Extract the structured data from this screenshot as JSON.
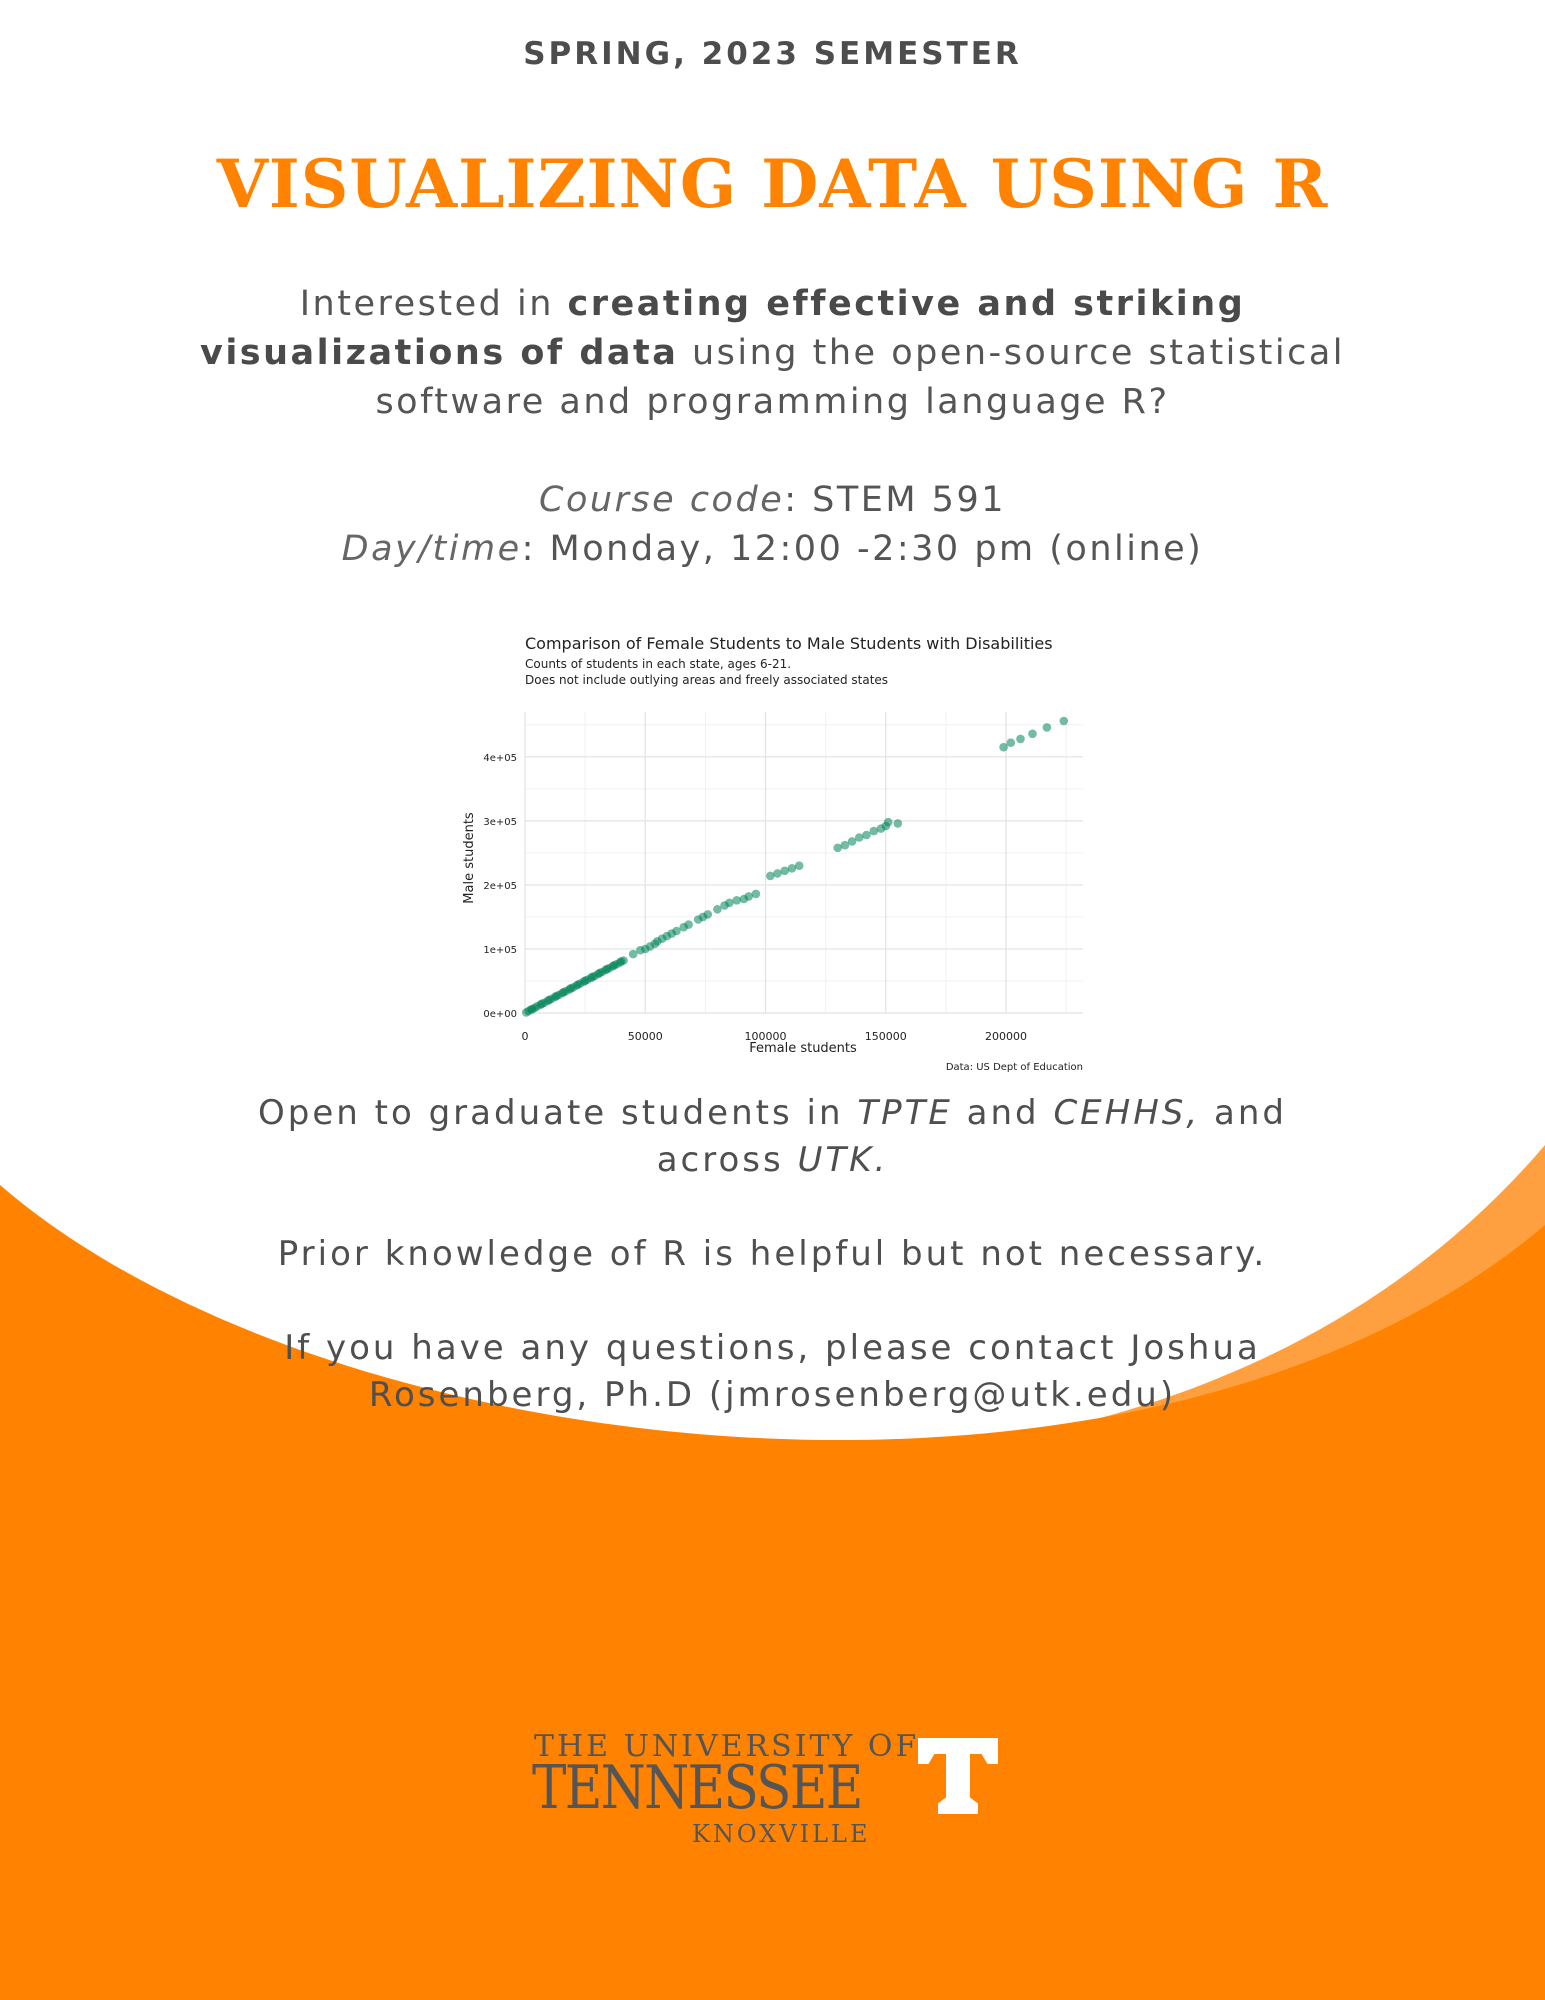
{
  "header": {
    "semester": "SPRING, 2023 SEMESTER",
    "title": "VISUALIZING DATA USING R"
  },
  "intro": {
    "part1": "Interested in ",
    "bold1": "creating effective and striking visualizations of data",
    "part2": " using the open-source statistical software and programming language R?"
  },
  "course": {
    "code_label": "Course code",
    "code_value": ": STEM 591",
    "time_label": "Day/time",
    "time_value": ": Monday, 12:00 -2:30 pm (online)"
  },
  "chart_data": {
    "type": "scatter",
    "title": "Comparison of Female Students to Male Students with Disabilities",
    "subtitle_line1": "Counts of students in each state, ages 6-21.",
    "subtitle_line2": "Does not include outlying areas and freely associated states",
    "xlabel": "Female students",
    "ylabel": "Male students",
    "caption": "Data: US Dept of Education",
    "xlim": [
      0,
      232000
    ],
    "ylim": [
      0,
      470000
    ],
    "x_ticks": [
      0,
      50000,
      100000,
      150000,
      200000
    ],
    "x_tick_labels": [
      "0",
      "50000",
      "100000",
      "150000",
      "200000"
    ],
    "y_ticks": [
      0,
      100000,
      200000,
      300000,
      400000
    ],
    "y_tick_labels": [
      "0e+00",
      "1e+05",
      "2e+05",
      "3e+05",
      "4e+05"
    ],
    "grid": true,
    "point_color": "#00845a",
    "points": [
      [
        500,
        1000
      ],
      [
        1500,
        3000
      ],
      [
        2500,
        5500
      ],
      [
        4000,
        8000
      ],
      [
        5000,
        10500
      ],
      [
        6500,
        13000
      ],
      [
        8000,
        16000
      ],
      [
        9500,
        19000
      ],
      [
        11000,
        22000
      ],
      [
        12500,
        25000
      ],
      [
        14000,
        28000
      ],
      [
        15500,
        31000
      ],
      [
        17000,
        34000
      ],
      [
        18500,
        37000
      ],
      [
        20000,
        40000
      ],
      [
        21500,
        43000
      ],
      [
        23000,
        46000
      ],
      [
        24500,
        49000
      ],
      [
        26000,
        52000
      ],
      [
        27500,
        55000
      ],
      [
        29000,
        58000
      ],
      [
        30500,
        61000
      ],
      [
        32000,
        64000
      ],
      [
        33500,
        67000
      ],
      [
        35000,
        70000
      ],
      [
        36500,
        73000
      ],
      [
        38000,
        76000
      ],
      [
        39500,
        79000
      ],
      [
        41000,
        82000
      ],
      [
        3000,
        6000
      ],
      [
        7000,
        14500
      ],
      [
        10000,
        20500
      ],
      [
        13000,
        26500
      ],
      [
        16000,
        32500
      ],
      [
        19000,
        38500
      ],
      [
        22000,
        44500
      ],
      [
        25000,
        50500
      ],
      [
        28000,
        56500
      ],
      [
        31000,
        62500
      ],
      [
        34000,
        68500
      ],
      [
        37000,
        74500
      ],
      [
        40000,
        80500
      ],
      [
        45000,
        92000
      ],
      [
        48000,
        98000
      ],
      [
        50000,
        100000
      ],
      [
        52000,
        104000
      ],
      [
        54000,
        108000
      ],
      [
        55000,
        112000
      ],
      [
        57000,
        116000
      ],
      [
        59000,
        120000
      ],
      [
        61000,
        124000
      ],
      [
        63000,
        128000
      ],
      [
        66000,
        134000
      ],
      [
        68000,
        138000
      ],
      [
        72000,
        146000
      ],
      [
        74000,
        150000
      ],
      [
        76000,
        154000
      ],
      [
        80000,
        162000
      ],
      [
        83000,
        168000
      ],
      [
        85000,
        172000
      ],
      [
        88000,
        176000
      ],
      [
        91000,
        178000
      ],
      [
        93000,
        182000
      ],
      [
        96000,
        186000
      ],
      [
        102000,
        214000
      ],
      [
        105000,
        218000
      ],
      [
        108000,
        222000
      ],
      [
        111000,
        226000
      ],
      [
        114000,
        230000
      ],
      [
        130000,
        258000
      ],
      [
        133000,
        262000
      ],
      [
        136000,
        268000
      ],
      [
        139000,
        274000
      ],
      [
        142000,
        278000
      ],
      [
        145000,
        284000
      ],
      [
        148000,
        288000
      ],
      [
        150000,
        292000
      ],
      [
        151000,
        298000
      ],
      [
        155000,
        296000
      ],
      [
        199000,
        415000
      ],
      [
        202000,
        422000
      ],
      [
        206000,
        428000
      ],
      [
        211000,
        436000
      ],
      [
        217000,
        446000
      ],
      [
        224000,
        456000
      ]
    ]
  },
  "body": {
    "line1_a": "Open to graduate students in ",
    "line1_tpte": "TPTE",
    "line1_b": " and ",
    "line1_cehhs": "CEHHS,",
    "line1_c": " and",
    "line2_a": "across ",
    "line2_utk": "UTK.",
    "prior": "Prior knowledge of R is helpful but not necessary.",
    "contact_line1": "If you have any questions, please contact Joshua",
    "contact_line2": "Rosenberg, Ph.D (jmrosenberg@utk.edu)"
  },
  "logo": {
    "line1": "THE UNIVERSITY OF",
    "line2": "TENNESSEE",
    "line3": "KNOXVILLE",
    "color_orange": "#ff8200",
    "color_text": "#555555"
  },
  "theme": {
    "accent": "#ff8200",
    "accent_light": "#ffa040"
  }
}
